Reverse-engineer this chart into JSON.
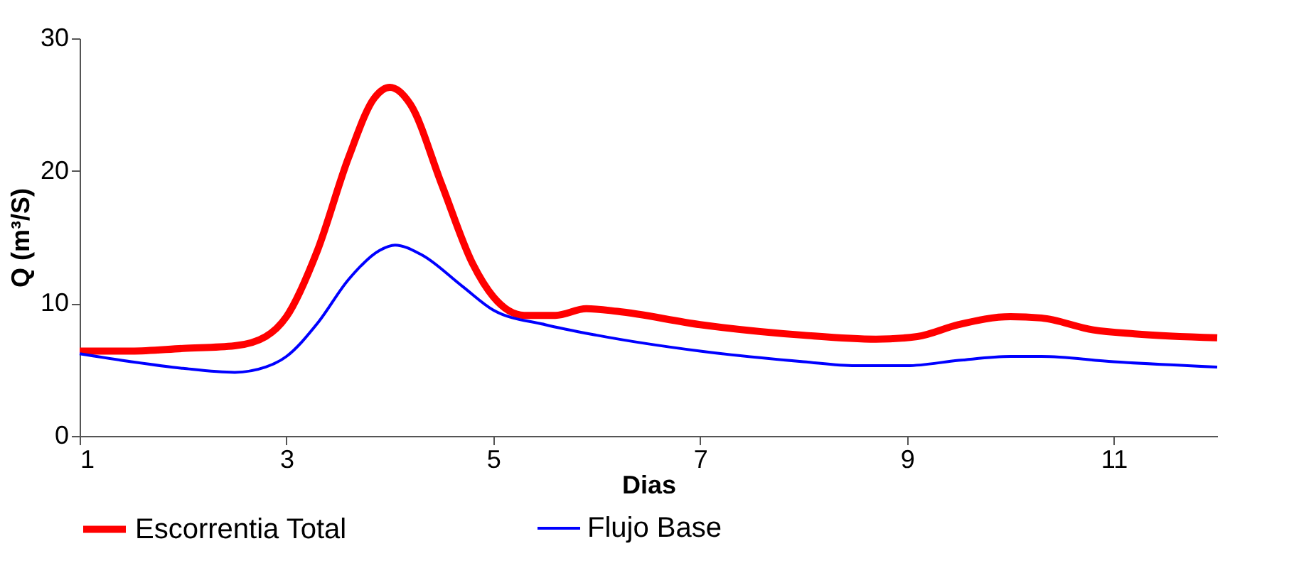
{
  "chart_data": {
    "type": "line",
    "xlabel": "Dias",
    "ylabel": "Q (m³/S)",
    "xlim": [
      1,
      12
    ],
    "xticks": [
      1,
      3,
      5,
      7,
      9,
      11
    ],
    "ylim": [
      0,
      30
    ],
    "yticks": [
      0,
      10,
      20,
      30
    ],
    "grid": false,
    "legend": "bottom",
    "marker": "none",
    "line_style": "solid",
    "series": [
      {
        "name": "Escorrentia Total",
        "color": "#ff0000",
        "x": [
          1,
          1.5,
          2,
          2.5,
          2.8,
          3,
          3.3,
          3.6,
          3.85,
          4,
          4.2,
          4.5,
          4.8,
          5,
          5.3,
          5.6,
          5.9,
          6.2,
          7,
          8,
          8.7,
          9.1,
          9.5,
          10,
          10.3,
          10.8,
          11.2,
          12
        ],
        "values": [
          6.4,
          6.4,
          6.6,
          6.8,
          7.5,
          9,
          14,
          21,
          25.5,
          26.3,
          25,
          19,
          13,
          10.5,
          9.1,
          9.1,
          9.6,
          9.4,
          8.4,
          7.6,
          7.3,
          7.5,
          8.4,
          9,
          8.9,
          8,
          7.7,
          7.4
        ]
      },
      {
        "name": "Flujo Base",
        "color": "#0000ff",
        "x": [
          1,
          1.5,
          2,
          2.5,
          2.8,
          3,
          3.3,
          3.6,
          3.9,
          4.05,
          4.3,
          4.7,
          5,
          5.5,
          6,
          7,
          8,
          8.5,
          9,
          9.5,
          10,
          10.3,
          11,
          12
        ],
        "values": [
          6.2,
          5.6,
          5.1,
          4.8,
          5.2,
          6,
          8.5,
          11.8,
          14,
          14.4,
          13.7,
          11.3,
          9.5,
          8.4,
          7.6,
          6.4,
          5.6,
          5.3,
          5.3,
          5.7,
          6,
          6,
          5.6,
          5.2
        ]
      }
    ]
  }
}
